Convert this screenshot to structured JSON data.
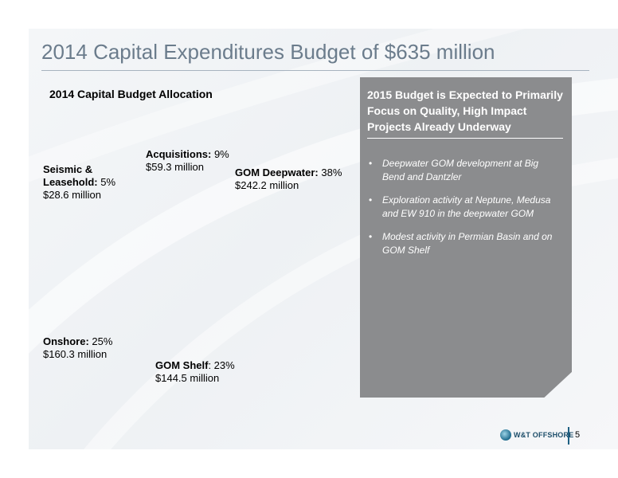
{
  "slide": {
    "title": "2014 Capital Expenditures Budget of $635 million"
  },
  "chart_data": {
    "type": "pie",
    "title": "2014 Capital Budget Allocation",
    "series": [
      {
        "name": "GOM Deepwater",
        "percent": 38,
        "amount": "$242.2 million",
        "percent_text": " 38%"
      },
      {
        "name": "GOM Shelf",
        "percent": 23,
        "amount": "$144.5 million",
        "percent_text": ": 23%"
      },
      {
        "name": "Onshore",
        "percent": 25,
        "amount": "$160.3 million",
        "percent_text": " 25%"
      },
      {
        "name": "Seismic & Leasehold",
        "percent": 5,
        "amount": "$28.6 million",
        "percent_text": " 5%"
      },
      {
        "name": "Acquisitions",
        "percent": 9,
        "amount": "$59.3 million",
        "percent_text": " 9%"
      }
    ]
  },
  "labels": {
    "acquisitions": {
      "name": "Acquisitions:",
      "percent": " 9%",
      "amount": "$59.3 million"
    },
    "seismic": {
      "name_line1": "Seismic &",
      "name_line2": "Leasehold:",
      "percent": " 5%",
      "amount": "$28.6 million"
    },
    "gom_deepwater": {
      "name": "GOM Deepwater:",
      "percent": " 38%",
      "amount": "$242.2 million"
    },
    "onshore": {
      "name": "Onshore:",
      "percent": " 25%",
      "amount": "$160.3 million"
    },
    "gom_shelf": {
      "name": "GOM Shelf",
      "percent": ": 23%",
      "amount": "$144.5 million"
    }
  },
  "panel": {
    "heading": "2015 Budget is Expected to Primarily Focus on Quality, High Impact Projects  Already Underway",
    "bullet_char": "•",
    "bullets": [
      "Deepwater GOM development at Big Bend and Dantzler",
      "Exploration activity at Neptune, Medusa and EW 910 in the deepwater GOM",
      "Modest activity in Permian Basin and on GOM Shelf"
    ]
  },
  "footer": {
    "logo_text": "W&T OFFSHORE",
    "page_number": "5"
  },
  "colors": {
    "title": "#6b7c8c",
    "panel_bg": "#8b8c8e",
    "brand": "#1d5f82"
  }
}
